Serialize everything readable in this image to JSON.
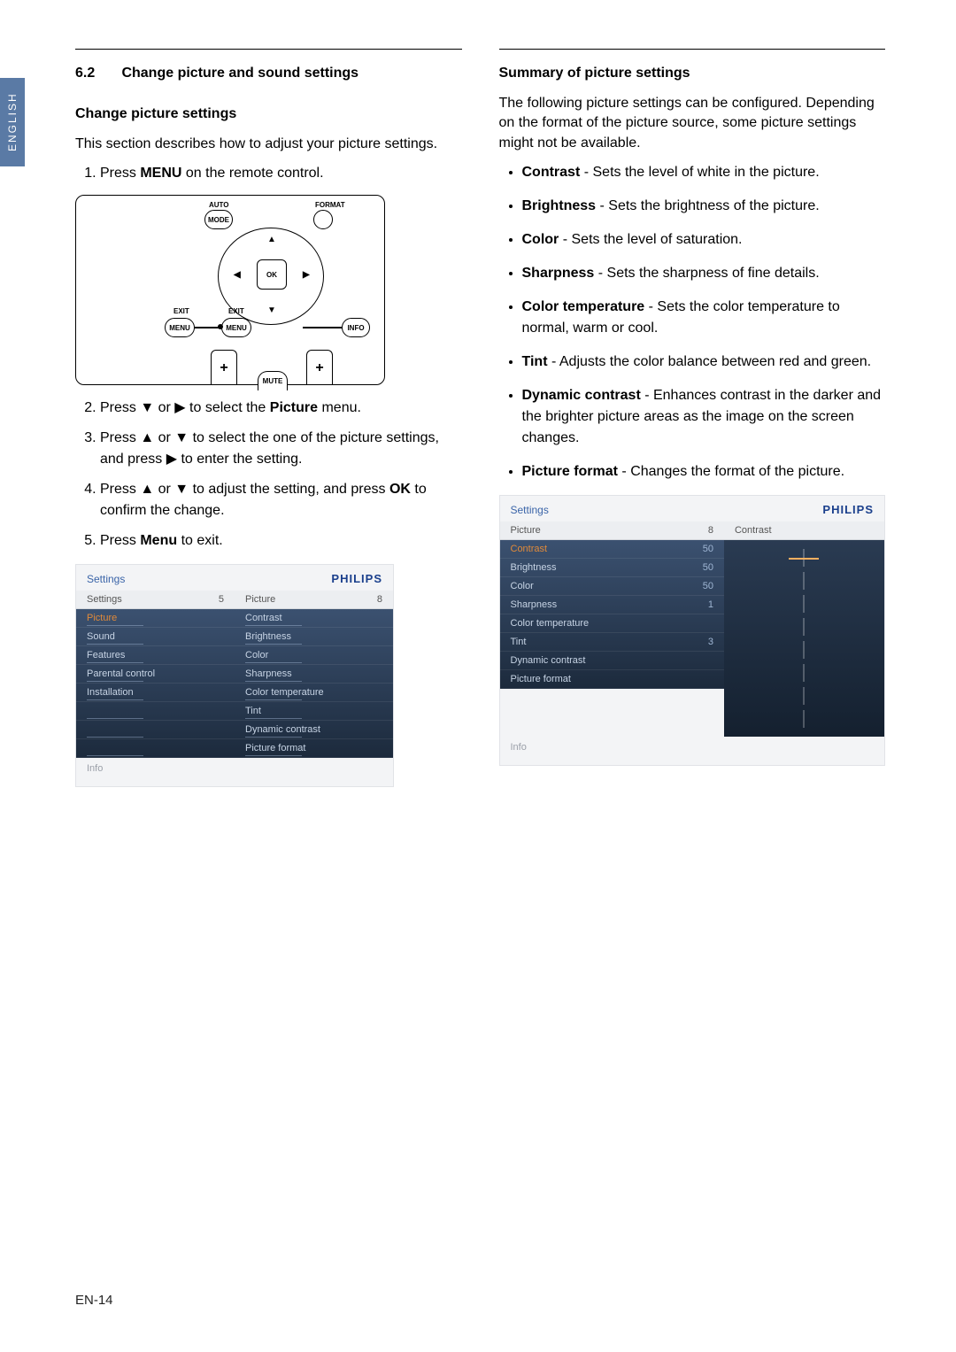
{
  "language_tab": "ENGLISH",
  "page_number": "EN-14",
  "philips_brand": "PHILIPS",
  "left": {
    "section_number": "6.2",
    "section_title": "Change picture and sound settings",
    "sub_heading": "Change picture settings",
    "intro": "This section describes how to adjust your picture settings.",
    "steps": {
      "s1_a": "Press ",
      "s1_b": "MENU",
      "s1_c": " on the remote control.",
      "s2_a": "Press ▼ or ▶ to select the ",
      "s2_b": "Picture",
      "s2_c": " menu.",
      "s3": "Press ▲ or ▼ to select the one of the picture settings, and press ▶ to enter the setting.",
      "s4_a": "Press ▲ or ▼ to adjust the setting, and press ",
      "s4_b": "OK",
      "s4_c": " to confirm the change.",
      "s5_a": "Press ",
      "s5_b": "Menu",
      "s5_c": " to exit."
    },
    "remote": {
      "auto": "AUTO",
      "format": "FORMAT",
      "mode": "MODE",
      "exit": "EXIT",
      "menu": "MENU",
      "info": "INFO",
      "ok": "OK",
      "mute": "MUTE",
      "plus": "+"
    },
    "osd": {
      "header_label": "Settings",
      "left_head_label": "Settings",
      "left_head_num": "5",
      "right_head_label": "Picture",
      "right_head_num": "8",
      "left_items": [
        "Picture",
        "Sound",
        "Features",
        "Parental control",
        "Installation"
      ],
      "right_items": [
        "Contrast",
        "Brightness",
        "Color",
        "Sharpness",
        "Color temperature",
        "Tint",
        "Dynamic contrast",
        "Picture format"
      ],
      "info": "Info"
    }
  },
  "right": {
    "sub_heading": "Summary of picture settings",
    "intro": "The following picture settings can be configured. Depending on the format of the picture source, some picture settings might not be available.",
    "items": [
      {
        "term": "Contrast",
        "desc": " - Sets the level of white in the picture."
      },
      {
        "term": "Brightness",
        "desc": " - Sets the brightness of the picture."
      },
      {
        "term": "Color",
        "desc": " - Sets the level of saturation."
      },
      {
        "term": "Sharpness",
        "desc": " - Sets the sharpness of fine details."
      },
      {
        "term": "Color temperature",
        "desc": " - Sets the color temperature to normal, warm or cool."
      },
      {
        "term": "Tint",
        "desc": " - Adjusts the color balance between red and green."
      },
      {
        "term": "Dynamic contrast",
        "desc": " - Enhances contrast in the darker and the brighter picture areas as the image on the screen changes."
      },
      {
        "term": "Picture format",
        "desc": " - Changes the format of the picture."
      }
    ],
    "osd": {
      "header_label": "Settings",
      "left_head_label": "Picture",
      "left_head_num": "8",
      "right_head_label": "Contrast",
      "rows": [
        {
          "label": "Contrast",
          "val": "50",
          "sel": true
        },
        {
          "label": "Brightness",
          "val": "50"
        },
        {
          "label": "Color",
          "val": "50"
        },
        {
          "label": "Sharpness",
          "val": "1"
        },
        {
          "label": "Color temperature",
          "val": ""
        },
        {
          "label": "Tint",
          "val": "3"
        },
        {
          "label": "Dynamic contrast",
          "val": ""
        },
        {
          "label": "Picture format",
          "val": ""
        }
      ],
      "info": "Info"
    }
  }
}
